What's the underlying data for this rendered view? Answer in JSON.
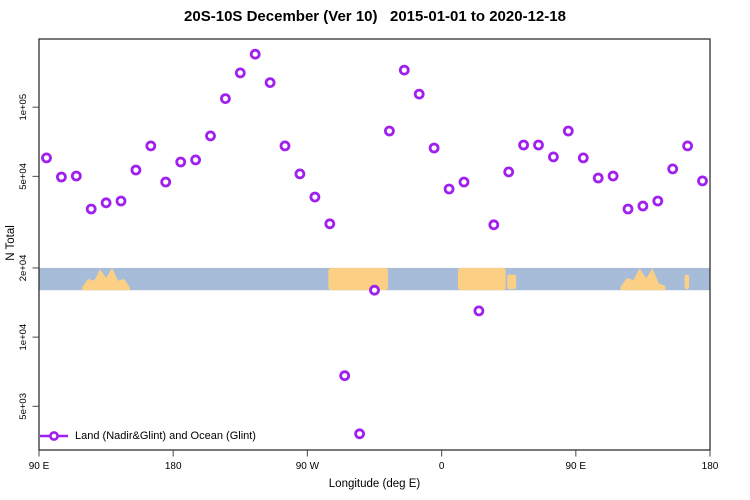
{
  "header": {
    "title": "20S-10S December (Ver 10)   2015-01-01 to 2020-12-18"
  },
  "legend": {
    "label": "Land (Nadir&Glint) and Ocean (Glint)"
  },
  "colors": {
    "marker": "#A020F0",
    "marker_fill": "#FFFFFF",
    "box": "#2F2F2F",
    "tick": "#666666",
    "text": "#000000",
    "ocean": "#A7BCD9",
    "land": "#FBD084"
  },
  "chart_data": {
    "type": "scatter",
    "title": "20S-10S December (Ver 10)   2015-01-01 to 2020-12-18",
    "xlabel": "Longitude (deg E)",
    "ylabel": "N Total",
    "grid": false,
    "legend_position": "bottom-left-inside",
    "x_axis": {
      "scale": "linear-wrapped-longitude",
      "range": [
        90,
        540
      ],
      "ticks": [
        {
          "deg": 90,
          "label": "90 E"
        },
        {
          "deg": 180,
          "label": "180"
        },
        {
          "deg": 270,
          "label": "90 W"
        },
        {
          "deg": 360,
          "label": "0"
        },
        {
          "deg": 450,
          "label": "90 E"
        },
        {
          "deg": 540,
          "label": "180"
        }
      ]
    },
    "y_axis": {
      "scale": "log10",
      "range": [
        3230,
        198000
      ],
      "ticks": [
        {
          "value": 100000,
          "label": "1e+05"
        },
        {
          "value": 50000,
          "label": "5e+04"
        },
        {
          "value": 20000,
          "label": "2e+04"
        },
        {
          "value": 10000,
          "label": "1e+04"
        },
        {
          "value": 5000,
          "label": "5e+03"
        }
      ]
    },
    "series": [
      {
        "name": "Land (Nadir&Glint) and Ocean (Glint)",
        "points_lon_n": [
          [
            95,
            60200
          ],
          [
            105,
            49700
          ],
          [
            115,
            50200
          ],
          [
            125,
            36100
          ],
          [
            135,
            38400
          ],
          [
            145,
            39100
          ],
          [
            155,
            53300
          ],
          [
            165,
            67900
          ],
          [
            175,
            47300
          ],
          [
            185,
            57800
          ],
          [
            195,
            59000
          ],
          [
            205,
            75000
          ],
          [
            215,
            109000
          ],
          [
            225,
            141000
          ],
          [
            235,
            170000
          ],
          [
            245,
            128000
          ],
          [
            255,
            67900
          ],
          [
            265,
            51300
          ],
          [
            275,
            40700
          ],
          [
            285,
            31100
          ],
          [
            295,
            6800
          ],
          [
            305,
            3800
          ],
          [
            315,
            16000
          ],
          [
            325,
            78800
          ],
          [
            335,
            145000
          ],
          [
            345,
            114000
          ],
          [
            355,
            66500
          ],
          [
            365,
            44100
          ],
          [
            375,
            47300
          ],
          [
            385,
            13000
          ],
          [
            395,
            30800
          ],
          [
            405,
            52300
          ],
          [
            415,
            68500
          ],
          [
            425,
            68500
          ],
          [
            435,
            60800
          ],
          [
            445,
            78800
          ],
          [
            455,
            60200
          ],
          [
            465,
            49200
          ],
          [
            475,
            50200
          ],
          [
            485,
            36100
          ],
          [
            495,
            37200
          ],
          [
            505,
            39100
          ],
          [
            515,
            53900
          ],
          [
            525,
            67900
          ],
          [
            535,
            47800
          ]
        ]
      }
    ],
    "map_band": {
      "description": "20S-10S latitude strip: ocean blue with land patches",
      "value_top": 20000,
      "value_bottom": 16000,
      "land_patches": [
        {
          "name": "australia",
          "deg0": 119,
          "deg1": 151,
          "style": "jagged"
        },
        {
          "name": "south-america",
          "deg0": 284,
          "deg1": 324,
          "style": "full"
        },
        {
          "name": "africa",
          "deg0": 371,
          "deg1": 403,
          "style": "full"
        },
        {
          "name": "madagascar",
          "deg0": 404,
          "deg1": 410,
          "style": "island"
        },
        {
          "name": "australia-2",
          "deg0": 480,
          "deg1": 510,
          "style": "jagged"
        },
        {
          "name": "fiji",
          "deg0": 523,
          "deg1": 526,
          "style": "island"
        }
      ]
    }
  }
}
